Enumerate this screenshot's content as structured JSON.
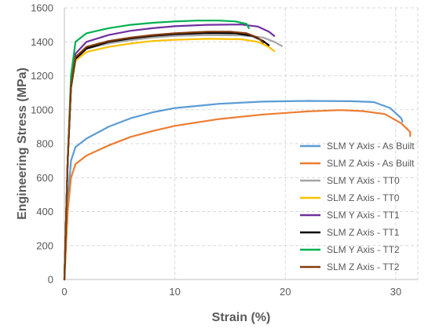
{
  "chart_data": {
    "type": "line",
    "title": "",
    "xlabel": "Strain (%)",
    "ylabel": "Engineering Stress (MPa)",
    "xlim": [
      0,
      32
    ],
    "ylim": [
      0,
      1600
    ],
    "x_ticks": [
      0,
      10,
      20,
      30
    ],
    "y_ticks": [
      0,
      200,
      400,
      600,
      800,
      1000,
      1200,
      1400,
      1600
    ],
    "grid": "dashed, both axes",
    "legend_position": "right, lower half",
    "series": [
      {
        "name": "SLM Y Axis - As Built",
        "color": "#5b9bd5",
        "points": [
          [
            0,
            0
          ],
          [
            0.3,
            450
          ],
          [
            0.6,
            700
          ],
          [
            1,
            780
          ],
          [
            2,
            830
          ],
          [
            4,
            900
          ],
          [
            6,
            950
          ],
          [
            8,
            985
          ],
          [
            10,
            1010
          ],
          [
            14,
            1035
          ],
          [
            18,
            1048
          ],
          [
            22,
            1052
          ],
          [
            26,
            1050
          ],
          [
            28,
            1045
          ],
          [
            29.5,
            1010
          ],
          [
            30.5,
            950
          ],
          [
            30.6,
            930
          ]
        ]
      },
      {
        "name": "SLM Z Axis - As Built",
        "color": "#ed7d31",
        "points": [
          [
            0,
            0
          ],
          [
            0.3,
            400
          ],
          [
            0.6,
            600
          ],
          [
            1,
            680
          ],
          [
            2,
            730
          ],
          [
            4,
            790
          ],
          [
            6,
            840
          ],
          [
            8,
            875
          ],
          [
            10,
            905
          ],
          [
            14,
            945
          ],
          [
            18,
            972
          ],
          [
            22,
            990
          ],
          [
            25,
            998
          ],
          [
            27,
            992
          ],
          [
            29,
            975
          ],
          [
            30.5,
            920
          ],
          [
            31.3,
            870
          ],
          [
            31.3,
            845
          ]
        ]
      },
      {
        "name": "SLM Y Axis - TT0",
        "color": "#a5a5a5",
        "points": [
          [
            0,
            0
          ],
          [
            0.3,
            700
          ],
          [
            0.6,
            1150
          ],
          [
            1,
            1300
          ],
          [
            2,
            1360
          ],
          [
            4,
            1390
          ],
          [
            6,
            1410
          ],
          [
            8,
            1425
          ],
          [
            10,
            1435
          ],
          [
            13,
            1440
          ],
          [
            16,
            1438
          ],
          [
            18,
            1425
          ],
          [
            19,
            1400
          ],
          [
            19.7,
            1375
          ]
        ]
      },
      {
        "name": "SLM Z Axis - TT0",
        "color": "#ffc000",
        "points": [
          [
            0,
            0
          ],
          [
            0.3,
            700
          ],
          [
            0.6,
            1130
          ],
          [
            1,
            1290
          ],
          [
            2,
            1340
          ],
          [
            4,
            1370
          ],
          [
            6,
            1390
          ],
          [
            8,
            1405
          ],
          [
            10,
            1412
          ],
          [
            13,
            1418
          ],
          [
            16,
            1415
          ],
          [
            17.5,
            1400
          ],
          [
            18.5,
            1370
          ],
          [
            19,
            1345
          ]
        ]
      },
      {
        "name": "SLM Y Axis - TT1",
        "color": "#7030a0",
        "points": [
          [
            0,
            0
          ],
          [
            0.3,
            700
          ],
          [
            0.6,
            1150
          ],
          [
            1,
            1330
          ],
          [
            2,
            1400
          ],
          [
            4,
            1440
          ],
          [
            6,
            1465
          ],
          [
            8,
            1480
          ],
          [
            10,
            1492
          ],
          [
            13,
            1500
          ],
          [
            16,
            1502
          ],
          [
            17.5,
            1490
          ],
          [
            18.5,
            1460
          ],
          [
            19,
            1435
          ]
        ]
      },
      {
        "name": "SLM Z Axis - TT1",
        "color": "#000000",
        "points": [
          [
            0,
            0
          ],
          [
            0.3,
            700
          ],
          [
            0.6,
            1130
          ],
          [
            1,
            1300
          ],
          [
            2,
            1360
          ],
          [
            4,
            1400
          ],
          [
            6,
            1420
          ],
          [
            8,
            1435
          ],
          [
            10,
            1445
          ],
          [
            13,
            1452
          ],
          [
            15.5,
            1450
          ],
          [
            17,
            1435
          ],
          [
            18,
            1405
          ],
          [
            18.5,
            1380
          ]
        ]
      },
      {
        "name": "SLM Y Axis - TT2",
        "color": "#00b050",
        "points": [
          [
            0,
            0
          ],
          [
            0.3,
            700
          ],
          [
            0.6,
            1200
          ],
          [
            1,
            1400
          ],
          [
            2,
            1450
          ],
          [
            4,
            1480
          ],
          [
            6,
            1500
          ],
          [
            8,
            1512
          ],
          [
            10,
            1520
          ],
          [
            12,
            1525
          ],
          [
            14,
            1525
          ],
          [
            15.5,
            1520
          ],
          [
            16.5,
            1505
          ],
          [
            16.7,
            1480
          ]
        ]
      },
      {
        "name": "SLM Z Axis - TT2",
        "color": "#843c0c",
        "points": [
          [
            0,
            0
          ],
          [
            0.3,
            700
          ],
          [
            0.6,
            1140
          ],
          [
            1,
            1310
          ],
          [
            2,
            1370
          ],
          [
            4,
            1405
          ],
          [
            6,
            1425
          ],
          [
            8,
            1440
          ],
          [
            10,
            1450
          ],
          [
            13,
            1460
          ],
          [
            15,
            1460
          ],
          [
            16.5,
            1450
          ],
          [
            17.5,
            1425
          ],
          [
            18,
            1395
          ]
        ]
      }
    ]
  }
}
